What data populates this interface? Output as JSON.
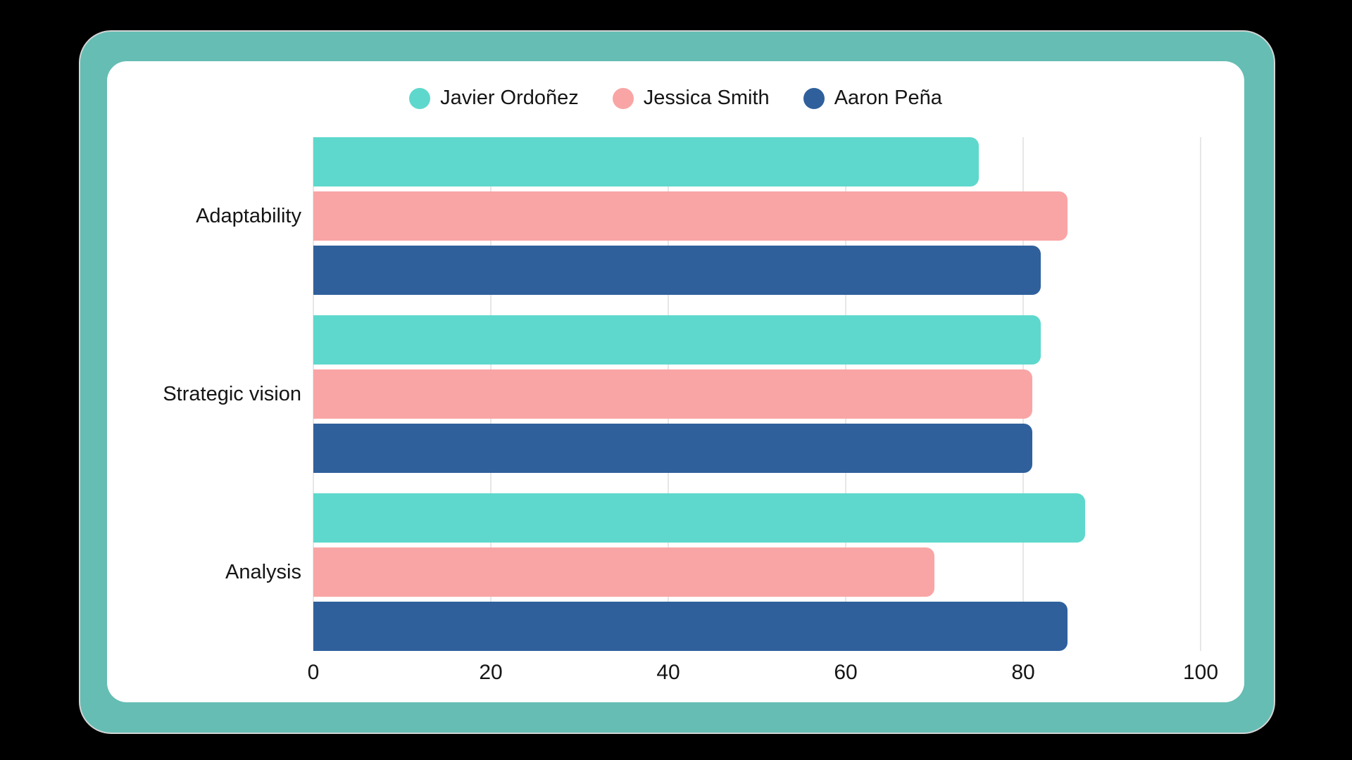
{
  "theme": {
    "page_background": "#000000",
    "frame_color": "#65BDB4",
    "frame_border_color": "#d2d4d3",
    "card_color": "#ffffff",
    "gridline_color": "#e7e7e7",
    "text_color": "#151515"
  },
  "chart_data": {
    "type": "bar",
    "orientation": "horizontal",
    "title": "",
    "xlabel": "",
    "ylabel": "",
    "categories": [
      "Adaptability",
      "Strategic vision",
      "Analysis"
    ],
    "series": [
      {
        "name": "Javier Ordoñez",
        "color": "#5ED8CC",
        "values": [
          75,
          82,
          87
        ]
      },
      {
        "name": "Jessica Smith",
        "color": "#F9A5A5",
        "values": [
          85,
          81,
          70
        ]
      },
      {
        "name": "Aaron Peña",
        "color": "#2F609C",
        "values": [
          82,
          81,
          85
        ]
      }
    ],
    "xlim": [
      0,
      100
    ],
    "x_ticks": [
      0,
      20,
      40,
      60,
      80,
      100
    ],
    "grid": "vertical",
    "legend_position": "top"
  }
}
